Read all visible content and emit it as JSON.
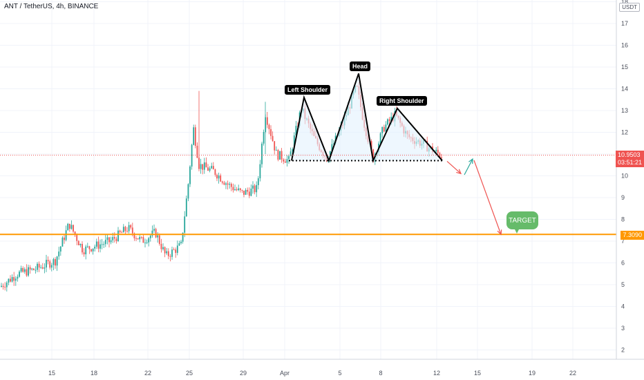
{
  "header": {
    "title": "ANT / TetherUS, 4h, BINANCE",
    "currency_badge": "USDT"
  },
  "price_axis": {
    "labels": [
      "2",
      "3",
      "4",
      "5",
      "6",
      "7",
      "8",
      "9",
      "10",
      "11",
      "12",
      "13",
      "14",
      "15",
      "16",
      "17",
      "18"
    ],
    "current_price": "10.9503",
    "countdown": "03:51:21",
    "target_price": "7.3090"
  },
  "time_axis": {
    "labels": [
      "15",
      "18",
      "22",
      "25",
      "29",
      "Apr",
      "5",
      "8",
      "12",
      "15",
      "19",
      "22"
    ]
  },
  "annotations": {
    "left_shoulder": "Left Shoulder",
    "head": "Head",
    "right_shoulder": "Right Shoulder",
    "target": "TARGET"
  },
  "colors": {
    "up": "#26a69a",
    "down": "#ef5350",
    "target_line": "#ff9800",
    "target_bubble": "#66bb6a",
    "current_price": "#ef5350"
  },
  "chart_data": {
    "type": "candlestick",
    "symbol": "ANT / TetherUS",
    "interval": "4h",
    "exchange": "BINANCE",
    "ylim": [
      1.2,
      18.2
    ],
    "x": [
      "15",
      "18",
      "22",
      "25",
      "29",
      "Apr",
      "5",
      "8",
      "12",
      "15",
      "19",
      "22"
    ],
    "series": [
      {
        "name": "price path",
        "points": [
          [
            0,
            4.9
          ],
          [
            25,
            5.5
          ],
          [
            50,
            5.7
          ],
          [
            80,
            6.1
          ],
          [
            100,
            7.8
          ],
          [
            120,
            6.6
          ],
          [
            160,
            7.0
          ],
          [
            185,
            7.6
          ],
          [
            205,
            7.0
          ],
          [
            225,
            7.4
          ],
          [
            240,
            6.3
          ],
          [
            262,
            6.8
          ],
          [
            272,
            9.5
          ],
          [
            280,
            12.2
          ],
          [
            288,
            10.5
          ],
          [
            310,
            10.2
          ],
          [
            330,
            9.6
          ],
          [
            350,
            9.2
          ],
          [
            372,
            9.4
          ],
          [
            384,
            12.9
          ],
          [
            400,
            11.0
          ],
          [
            418,
            10.7
          ],
          [
            436,
            13.1
          ],
          [
            455,
            11.7
          ],
          [
            473,
            10.8
          ],
          [
            495,
            12.3
          ],
          [
            516,
            14.1
          ],
          [
            527,
            12.4
          ],
          [
            540,
            10.8
          ],
          [
            555,
            12.2
          ],
          [
            572,
            12.8
          ],
          [
            590,
            11.8
          ],
          [
            610,
            11.5
          ],
          [
            625,
            11.2
          ],
          [
            640,
            10.9
          ]
        ]
      }
    ],
    "current_price": 10.9503,
    "target_level": 7.309,
    "pattern": {
      "left_shoulder_peak": 13.6,
      "head_peak": 14.7,
      "right_shoulder_peak": 13.1,
      "neckline": 10.7
    },
    "projection": [
      [
        640,
        10.7
      ],
      [
        667,
        10.1
      ],
      [
        684,
        10.9
      ],
      [
        725,
        7.31
      ]
    ]
  }
}
